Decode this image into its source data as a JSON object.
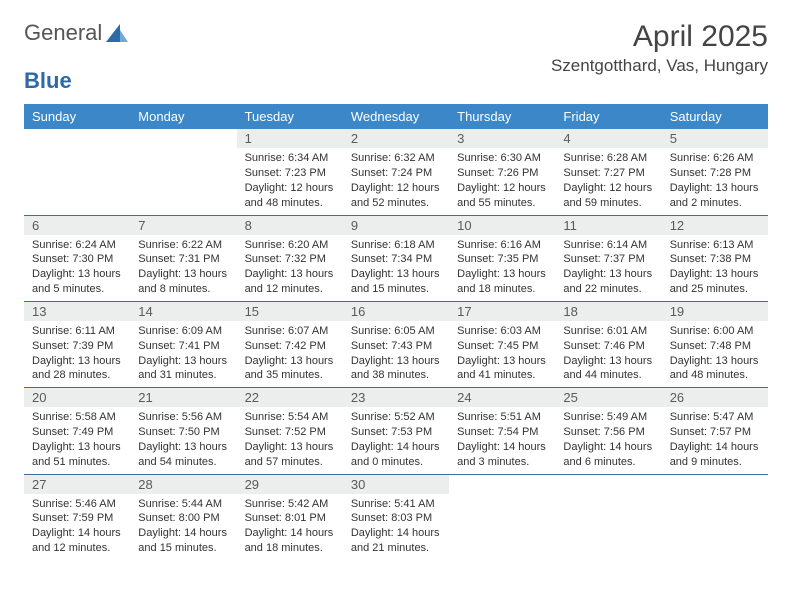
{
  "brand": {
    "word1": "General",
    "word2": "Blue"
  },
  "title": "April 2025",
  "location": "Szentgotthard, Vas, Hungary",
  "colors": {
    "header_bg": "#3b87c8",
    "header_fg": "#ffffff",
    "daynum_bg": "#eceded",
    "rule": "#3b6fa0",
    "brand_accent": "#2d6aa8"
  },
  "weekdays": [
    "Sunday",
    "Monday",
    "Tuesday",
    "Wednesday",
    "Thursday",
    "Friday",
    "Saturday"
  ],
  "weeks": [
    [
      {
        "n": "",
        "sunrise": "",
        "sunset": "",
        "daylight": ""
      },
      {
        "n": "",
        "sunrise": "",
        "sunset": "",
        "daylight": ""
      },
      {
        "n": "1",
        "sunrise": "Sunrise: 6:34 AM",
        "sunset": "Sunset: 7:23 PM",
        "daylight": "Daylight: 12 hours and 48 minutes."
      },
      {
        "n": "2",
        "sunrise": "Sunrise: 6:32 AM",
        "sunset": "Sunset: 7:24 PM",
        "daylight": "Daylight: 12 hours and 52 minutes."
      },
      {
        "n": "3",
        "sunrise": "Sunrise: 6:30 AM",
        "sunset": "Sunset: 7:26 PM",
        "daylight": "Daylight: 12 hours and 55 minutes."
      },
      {
        "n": "4",
        "sunrise": "Sunrise: 6:28 AM",
        "sunset": "Sunset: 7:27 PM",
        "daylight": "Daylight: 12 hours and 59 minutes."
      },
      {
        "n": "5",
        "sunrise": "Sunrise: 6:26 AM",
        "sunset": "Sunset: 7:28 PM",
        "daylight": "Daylight: 13 hours and 2 minutes."
      }
    ],
    [
      {
        "n": "6",
        "sunrise": "Sunrise: 6:24 AM",
        "sunset": "Sunset: 7:30 PM",
        "daylight": "Daylight: 13 hours and 5 minutes."
      },
      {
        "n": "7",
        "sunrise": "Sunrise: 6:22 AM",
        "sunset": "Sunset: 7:31 PM",
        "daylight": "Daylight: 13 hours and 8 minutes."
      },
      {
        "n": "8",
        "sunrise": "Sunrise: 6:20 AM",
        "sunset": "Sunset: 7:32 PM",
        "daylight": "Daylight: 13 hours and 12 minutes."
      },
      {
        "n": "9",
        "sunrise": "Sunrise: 6:18 AM",
        "sunset": "Sunset: 7:34 PM",
        "daylight": "Daylight: 13 hours and 15 minutes."
      },
      {
        "n": "10",
        "sunrise": "Sunrise: 6:16 AM",
        "sunset": "Sunset: 7:35 PM",
        "daylight": "Daylight: 13 hours and 18 minutes."
      },
      {
        "n": "11",
        "sunrise": "Sunrise: 6:14 AM",
        "sunset": "Sunset: 7:37 PM",
        "daylight": "Daylight: 13 hours and 22 minutes."
      },
      {
        "n": "12",
        "sunrise": "Sunrise: 6:13 AM",
        "sunset": "Sunset: 7:38 PM",
        "daylight": "Daylight: 13 hours and 25 minutes."
      }
    ],
    [
      {
        "n": "13",
        "sunrise": "Sunrise: 6:11 AM",
        "sunset": "Sunset: 7:39 PM",
        "daylight": "Daylight: 13 hours and 28 minutes."
      },
      {
        "n": "14",
        "sunrise": "Sunrise: 6:09 AM",
        "sunset": "Sunset: 7:41 PM",
        "daylight": "Daylight: 13 hours and 31 minutes."
      },
      {
        "n": "15",
        "sunrise": "Sunrise: 6:07 AM",
        "sunset": "Sunset: 7:42 PM",
        "daylight": "Daylight: 13 hours and 35 minutes."
      },
      {
        "n": "16",
        "sunrise": "Sunrise: 6:05 AM",
        "sunset": "Sunset: 7:43 PM",
        "daylight": "Daylight: 13 hours and 38 minutes."
      },
      {
        "n": "17",
        "sunrise": "Sunrise: 6:03 AM",
        "sunset": "Sunset: 7:45 PM",
        "daylight": "Daylight: 13 hours and 41 minutes."
      },
      {
        "n": "18",
        "sunrise": "Sunrise: 6:01 AM",
        "sunset": "Sunset: 7:46 PM",
        "daylight": "Daylight: 13 hours and 44 minutes."
      },
      {
        "n": "19",
        "sunrise": "Sunrise: 6:00 AM",
        "sunset": "Sunset: 7:48 PM",
        "daylight": "Daylight: 13 hours and 48 minutes."
      }
    ],
    [
      {
        "n": "20",
        "sunrise": "Sunrise: 5:58 AM",
        "sunset": "Sunset: 7:49 PM",
        "daylight": "Daylight: 13 hours and 51 minutes."
      },
      {
        "n": "21",
        "sunrise": "Sunrise: 5:56 AM",
        "sunset": "Sunset: 7:50 PM",
        "daylight": "Daylight: 13 hours and 54 minutes."
      },
      {
        "n": "22",
        "sunrise": "Sunrise: 5:54 AM",
        "sunset": "Sunset: 7:52 PM",
        "daylight": "Daylight: 13 hours and 57 minutes."
      },
      {
        "n": "23",
        "sunrise": "Sunrise: 5:52 AM",
        "sunset": "Sunset: 7:53 PM",
        "daylight": "Daylight: 14 hours and 0 minutes."
      },
      {
        "n": "24",
        "sunrise": "Sunrise: 5:51 AM",
        "sunset": "Sunset: 7:54 PM",
        "daylight": "Daylight: 14 hours and 3 minutes."
      },
      {
        "n": "25",
        "sunrise": "Sunrise: 5:49 AM",
        "sunset": "Sunset: 7:56 PM",
        "daylight": "Daylight: 14 hours and 6 minutes."
      },
      {
        "n": "26",
        "sunrise": "Sunrise: 5:47 AM",
        "sunset": "Sunset: 7:57 PM",
        "daylight": "Daylight: 14 hours and 9 minutes."
      }
    ],
    [
      {
        "n": "27",
        "sunrise": "Sunrise: 5:46 AM",
        "sunset": "Sunset: 7:59 PM",
        "daylight": "Daylight: 14 hours and 12 minutes."
      },
      {
        "n": "28",
        "sunrise": "Sunrise: 5:44 AM",
        "sunset": "Sunset: 8:00 PM",
        "daylight": "Daylight: 14 hours and 15 minutes."
      },
      {
        "n": "29",
        "sunrise": "Sunrise: 5:42 AM",
        "sunset": "Sunset: 8:01 PM",
        "daylight": "Daylight: 14 hours and 18 minutes."
      },
      {
        "n": "30",
        "sunrise": "Sunrise: 5:41 AM",
        "sunset": "Sunset: 8:03 PM",
        "daylight": "Daylight: 14 hours and 21 minutes."
      },
      {
        "n": "",
        "sunrise": "",
        "sunset": "",
        "daylight": ""
      },
      {
        "n": "",
        "sunrise": "",
        "sunset": "",
        "daylight": ""
      },
      {
        "n": "",
        "sunrise": "",
        "sunset": "",
        "daylight": ""
      }
    ]
  ]
}
